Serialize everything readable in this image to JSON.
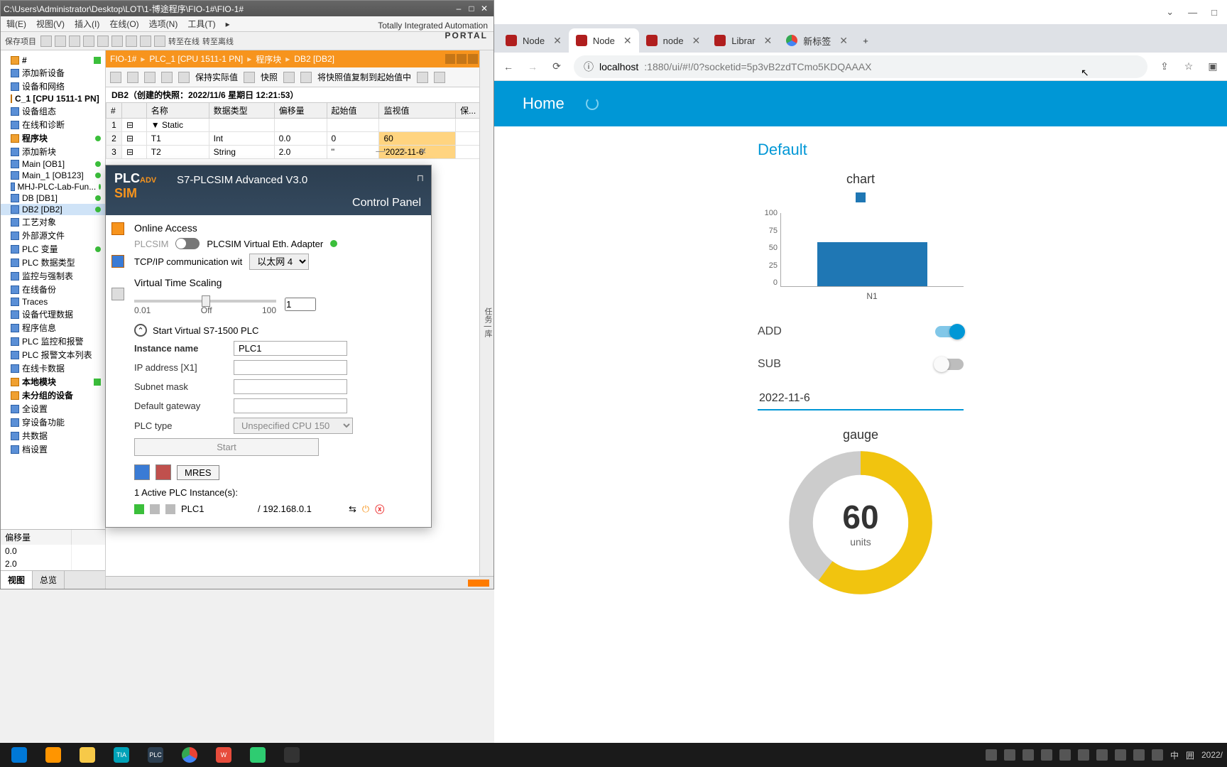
{
  "tia": {
    "titlebar_path": "C:\\Users\\Administrator\\Desktop\\LOT\\1-博途程序\\FIO-1#\\FIO-1#",
    "menus": [
      "辑(E)",
      "视图(V)",
      "插入(I)",
      "在线(O)",
      "选项(N)",
      "工具(T)",
      "▸"
    ],
    "toolbar_items": [
      "▢",
      "▢",
      "✕",
      "↶",
      "↷",
      "▢",
      "▢",
      "▢",
      "▢",
      "转至在线",
      "转至离线"
    ],
    "brand_line1": "Totally Integrated Automation",
    "brand_line2": "PORTAL",
    "toolbar2_text": "保存项目",
    "breadcrumb": [
      "FIO-1#",
      "PLC_1 [CPU 1511-1 PN]",
      "程序块",
      "DB2 [DB2]"
    ],
    "iconbar_labels": [
      "保持实际值",
      "快照",
      "将快照值复制到起始值中"
    ],
    "snapshot_line": "DB2（创建的快照：2022/11/6 星期日 12:21:53）",
    "grid": {
      "headers": [
        "",
        "名称",
        "数据类型",
        "偏移量",
        "起始值",
        "监视值",
        "保..."
      ],
      "rows": [
        {
          "n": "1",
          "name": "▼ Static",
          "type": "",
          "offset": "",
          "start": "",
          "mon": ""
        },
        {
          "n": "2",
          "name": "    T1",
          "type": "Int",
          "offset": "0.0",
          "start": "0",
          "mon": "60"
        },
        {
          "n": "3",
          "name": "    T2",
          "type": "String",
          "offset": "2.0",
          "start": "''",
          "mon": "'2022-11-6'"
        }
      ]
    },
    "tree": [
      {
        "t": "#",
        "bold": true,
        "chk": true
      },
      {
        "t": "添加新设备"
      },
      {
        "t": "设备和网络"
      },
      {
        "t": "C_1 [CPU 1511-1 PN]",
        "bold": true,
        "chk": true
      },
      {
        "t": "设备组态"
      },
      {
        "t": "在线和诊断"
      },
      {
        "t": "程序块",
        "bold": true,
        "dot": true
      },
      {
        "t": "添加新块"
      },
      {
        "t": "Main [OB1]",
        "dot": true
      },
      {
        "t": "Main_1 [OB123]",
        "dot": true
      },
      {
        "t": "MHJ-PLC-Lab-Fun...",
        "dot": true
      },
      {
        "t": "DB [DB1]",
        "dot": true
      },
      {
        "t": "DB2 [DB2]",
        "sel": true,
        "dot": true
      },
      {
        "t": "工艺对象"
      },
      {
        "t": "外部源文件"
      },
      {
        "t": "PLC 变量",
        "dot": true
      },
      {
        "t": "PLC 数据类型"
      },
      {
        "t": "监控与强制表"
      },
      {
        "t": "在线备份"
      },
      {
        "t": "Traces"
      },
      {
        "t": "设备代理数据"
      },
      {
        "t": "程序信息"
      },
      {
        "t": "PLC 监控和报警"
      },
      {
        "t": "PLC 报警文本列表"
      },
      {
        "t": "在线卡数据"
      },
      {
        "t": "本地模块",
        "bold": true,
        "chk": true
      },
      {
        "t": "未分组的设备",
        "bold": true
      },
      {
        "t": "全设置"
      },
      {
        "t": "穿设备功能"
      },
      {
        "t": "共数据"
      },
      {
        "t": "档设置"
      }
    ],
    "detail_tabs": [
      "视图",
      "总览"
    ],
    "detail_header": "偏移量",
    "detail_rows": [
      "0.0",
      "2.0"
    ],
    "vtab": "任务 | 库"
  },
  "plcsim": {
    "title": "S7-PLCSIM Advanced V3.0",
    "cp": "Control Panel",
    "logo1": "PLC",
    "logo2": "ADV",
    "logo3": "SIM",
    "online_access": "Online Access",
    "plcsim_label": "PLCSIM",
    "adapter_label": "PLCSIM Virtual Eth. Adapter",
    "tcpip_label": "TCP/IP communication wit",
    "tcpip_value": "以太网 4",
    "vts_label": "Virtual Time Scaling",
    "vts_value": "1",
    "scale_min": "0.01",
    "scale_off": "Off",
    "scale_max": "100",
    "start_section": "Start Virtual S7-1500 PLC",
    "f_instance": "Instance name",
    "v_instance": "PLC1",
    "f_ip": "IP address [X1]",
    "v_ip": "",
    "f_subnet": "Subnet mask",
    "v_subnet": "",
    "f_gateway": "Default gateway",
    "v_gateway": "",
    "f_type": "PLC type",
    "v_type": "Unspecified CPU 150",
    "start_btn": "Start",
    "mres_btn": "MRES",
    "active_label": "1 Active PLC Instance(s):",
    "inst_name": "PLC1",
    "inst_ip": "/ 192.168.0.1"
  },
  "browser": {
    "tabs": [
      {
        "label": "Node",
        "fav": "red"
      },
      {
        "label": "Node",
        "fav": "red",
        "active": true
      },
      {
        "label": "node",
        "fav": "red"
      },
      {
        "label": "Librar",
        "fav": "red"
      },
      {
        "label": "新标签",
        "fav": "chrome"
      }
    ],
    "url_prefix": "localhost",
    "url_rest": ":1880/ui/#!/0?socketid=5p3vB2zdTCmo5KDQAAAX",
    "home": "Home"
  },
  "dashboard": {
    "section_title": "Default",
    "chart": {
      "title": "chart",
      "color": "#1f77b4",
      "ylabels": [
        "100",
        "75",
        "50",
        "25",
        "0"
      ],
      "xlabel": "N1",
      "value": 60,
      "ymax": 100
    },
    "switch_add": "ADD",
    "switch_sub": "SUB",
    "text_value": "2022-11-6",
    "gauge": {
      "title": "gauge",
      "value": "60",
      "units": "units",
      "pct": 60,
      "fg": "#f1c40f",
      "bg": "#cccccc"
    }
  },
  "taskbar": {
    "items": [
      {
        "c": "#0078d7"
      },
      {
        "c": "#ff9500"
      },
      {
        "c": "#f7c948"
      },
      {
        "c": "#00a2b8",
        "txt": "TIA"
      },
      {
        "c": "#2c3e50",
        "txt": "PLC"
      },
      {
        "c": "#fff",
        "chrome": true
      },
      {
        "c": "#e74c3c",
        "txt": "W"
      },
      {
        "c": "#2ecc71"
      },
      {
        "c": "#333"
      }
    ],
    "clock": "2022/"
  }
}
